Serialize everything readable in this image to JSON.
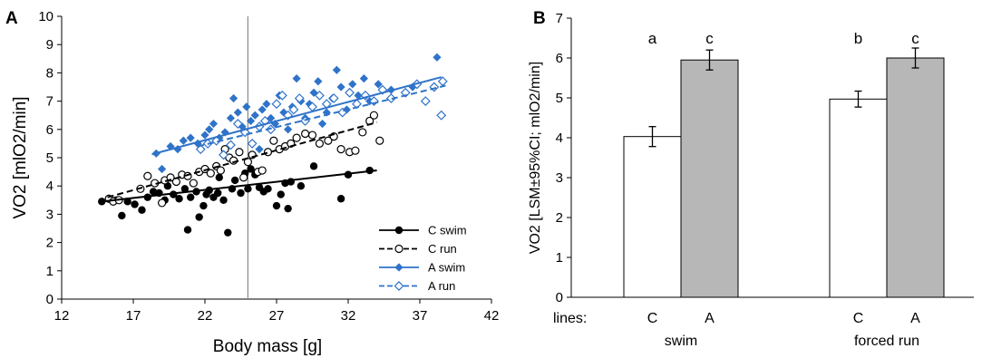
{
  "chart_data": [
    {
      "type": "scatter",
      "panel_label": "A",
      "xlabel": "Body mass [g]",
      "ylabel": "VO2 [mlO2/min]",
      "xlim": [
        12,
        42
      ],
      "ylim": [
        0,
        10
      ],
      "xticks": [
        "12",
        "17",
        "22",
        "27",
        "32",
        "37",
        "42"
      ],
      "yticks": [
        "0",
        "1",
        "2",
        "3",
        "4",
        "5",
        "6",
        "7",
        "8",
        "9",
        "10"
      ],
      "vline_x": 25,
      "legend_position": "bottom-right",
      "colors": {
        "black": "#000000",
        "blue": "#2f73c9"
      },
      "series": [
        {
          "name": "C swim",
          "marker": "filled-circle",
          "line": "solid",
          "color": "#000000",
          "trend": [
            [
              14.8,
              3.45
            ],
            [
              34.0,
              4.55
            ]
          ],
          "points": [
            [
              14.8,
              3.45
            ],
            [
              15.8,
              3.5
            ],
            [
              16.2,
              2.95
            ],
            [
              16.6,
              3.45
            ],
            [
              17.1,
              3.35
            ],
            [
              17.6,
              3.15
            ],
            [
              18.0,
              3.6
            ],
            [
              18.4,
              3.8
            ],
            [
              18.8,
              3.75
            ],
            [
              19.2,
              3.5
            ],
            [
              19.4,
              4.0
            ],
            [
              19.8,
              3.7
            ],
            [
              20.2,
              3.55
            ],
            [
              20.6,
              3.9
            ],
            [
              20.8,
              2.45
            ],
            [
              21.0,
              3.6
            ],
            [
              21.4,
              3.8
            ],
            [
              21.6,
              2.9
            ],
            [
              21.9,
              3.3
            ],
            [
              22.1,
              3.7
            ],
            [
              22.3,
              3.85
            ],
            [
              22.6,
              3.6
            ],
            [
              22.9,
              3.75
            ],
            [
              23.0,
              4.3
            ],
            [
              23.3,
              3.5
            ],
            [
              23.6,
              2.35
            ],
            [
              23.9,
              3.9
            ],
            [
              24.1,
              4.2
            ],
            [
              24.5,
              3.75
            ],
            [
              24.8,
              4.45
            ],
            [
              25.0,
              3.9
            ],
            [
              25.2,
              4.6
            ],
            [
              25.5,
              4.4
            ],
            [
              25.8,
              3.95
            ],
            [
              26.1,
              3.8
            ],
            [
              26.4,
              3.9
            ],
            [
              27.0,
              3.3
            ],
            [
              27.3,
              3.7
            ],
            [
              27.6,
              4.1
            ],
            [
              27.8,
              3.2
            ],
            [
              28.0,
              4.15
            ],
            [
              28.7,
              4.0
            ],
            [
              29.6,
              4.7
            ],
            [
              31.5,
              3.55
            ],
            [
              32.0,
              4.4
            ],
            [
              33.5,
              4.55
            ]
          ]
        },
        {
          "name": "C run",
          "marker": "open-circle",
          "line": "dashed",
          "color": "#000000",
          "trend": [
            [
              15.2,
              3.6
            ],
            [
              34.0,
              6.25
            ]
          ],
          "points": [
            [
              15.3,
              3.55
            ],
            [
              15.6,
              3.45
            ],
            [
              16.0,
              3.5
            ],
            [
              17.5,
              3.9
            ],
            [
              18.0,
              4.35
            ],
            [
              18.5,
              4.1
            ],
            [
              19.0,
              3.4
            ],
            [
              19.2,
              4.2
            ],
            [
              19.6,
              4.3
            ],
            [
              20.0,
              4.15
            ],
            [
              20.4,
              4.4
            ],
            [
              20.8,
              4.35
            ],
            [
              21.2,
              4.1
            ],
            [
              21.6,
              4.5
            ],
            [
              22.0,
              4.6
            ],
            [
              22.4,
              4.45
            ],
            [
              22.8,
              4.7
            ],
            [
              23.1,
              4.55
            ],
            [
              23.4,
              5.3
            ],
            [
              23.7,
              5.0
            ],
            [
              24.0,
              4.9
            ],
            [
              24.4,
              5.2
            ],
            [
              24.7,
              4.3
            ],
            [
              25.0,
              4.85
            ],
            [
              25.3,
              5.1
            ],
            [
              25.7,
              4.5
            ],
            [
              26.0,
              4.55
            ],
            [
              26.4,
              5.2
            ],
            [
              26.8,
              5.6
            ],
            [
              27.2,
              5.3
            ],
            [
              27.6,
              5.4
            ],
            [
              28.0,
              5.5
            ],
            [
              28.4,
              5.7
            ],
            [
              29.0,
              5.85
            ],
            [
              29.5,
              5.8
            ],
            [
              30.0,
              5.5
            ],
            [
              30.6,
              5.6
            ],
            [
              31.0,
              5.75
            ],
            [
              31.5,
              5.3
            ],
            [
              32.1,
              5.2
            ],
            [
              32.5,
              5.25
            ],
            [
              33.0,
              5.9
            ],
            [
              33.5,
              6.3
            ],
            [
              33.8,
              6.5
            ],
            [
              34.2,
              5.6
            ]
          ]
        },
        {
          "name": "A swim",
          "marker": "filled-diamond",
          "line": "solid",
          "color": "#2f73c9",
          "trend": [
            [
              18.3,
              5.12
            ],
            [
              38.5,
              7.85
            ]
          ],
          "points": [
            [
              18.6,
              5.15
            ],
            [
              19.0,
              4.6
            ],
            [
              19.6,
              5.4
            ],
            [
              20.1,
              5.3
            ],
            [
              20.5,
              5.6
            ],
            [
              21.0,
              5.7
            ],
            [
              21.5,
              5.5
            ],
            [
              22.0,
              5.8
            ],
            [
              22.3,
              6.0
            ],
            [
              22.6,
              6.2
            ],
            [
              23.0,
              5.7
            ],
            [
              23.4,
              5.9
            ],
            [
              23.8,
              6.4
            ],
            [
              24.0,
              7.1
            ],
            [
              24.3,
              6.6
            ],
            [
              24.6,
              6.1
            ],
            [
              24.9,
              6.8
            ],
            [
              25.2,
              6.3
            ],
            [
              25.5,
              6.5
            ],
            [
              25.8,
              5.3
            ],
            [
              26.0,
              6.7
            ],
            [
              26.3,
              6.9
            ],
            [
              26.6,
              6.4
            ],
            [
              26.9,
              6.2
            ],
            [
              27.2,
              7.2
            ],
            [
              27.5,
              6.6
            ],
            [
              27.8,
              6.0
            ],
            [
              28.1,
              6.8
            ],
            [
              28.4,
              7.8
            ],
            [
              28.7,
              7.0
            ],
            [
              29.0,
              6.4
            ],
            [
              29.3,
              6.9
            ],
            [
              29.6,
              7.3
            ],
            [
              29.9,
              7.7
            ],
            [
              30.2,
              6.2
            ],
            [
              30.5,
              6.6
            ],
            [
              30.9,
              7.1
            ],
            [
              31.2,
              8.1
            ],
            [
              31.5,
              7.5
            ],
            [
              31.9,
              6.7
            ],
            [
              32.3,
              7.6
            ],
            [
              32.7,
              7.2
            ],
            [
              33.1,
              7.8
            ],
            [
              33.5,
              7.0
            ],
            [
              34.1,
              7.6
            ],
            [
              35.0,
              7.4
            ],
            [
              36.5,
              7.5
            ],
            [
              38.2,
              8.55
            ]
          ]
        },
        {
          "name": "A run",
          "marker": "open-diamond",
          "line": "dashed",
          "color": "#2f73c9",
          "trend": [
            [
              21.5,
              5.4
            ],
            [
              38.8,
              7.55
            ]
          ],
          "points": [
            [
              21.7,
              5.3
            ],
            [
              22.2,
              5.5
            ],
            [
              22.8,
              5.6
            ],
            [
              23.3,
              5.1
            ],
            [
              23.8,
              5.45
            ],
            [
              24.3,
              6.2
            ],
            [
              24.8,
              5.9
            ],
            [
              25.3,
              5.5
            ],
            [
              25.8,
              6.1
            ],
            [
              26.2,
              6.3
            ],
            [
              26.6,
              6.0
            ],
            [
              27.0,
              6.9
            ],
            [
              27.4,
              7.2
            ],
            [
              27.8,
              6.5
            ],
            [
              28.2,
              6.7
            ],
            [
              28.6,
              7.1
            ],
            [
              29.0,
              6.3
            ],
            [
              29.5,
              6.8
            ],
            [
              30.0,
              7.2
            ],
            [
              30.5,
              6.9
            ],
            [
              31.0,
              7.1
            ],
            [
              31.6,
              6.6
            ],
            [
              32.1,
              7.3
            ],
            [
              32.6,
              6.9
            ],
            [
              33.2,
              7.2
            ],
            [
              33.8,
              7.0
            ],
            [
              34.4,
              7.4
            ],
            [
              35.0,
              7.1
            ],
            [
              36.0,
              7.3
            ],
            [
              36.8,
              7.6
            ],
            [
              37.4,
              7.0
            ],
            [
              38.0,
              7.5
            ],
            [
              38.6,
              7.7
            ],
            [
              38.5,
              6.5
            ]
          ]
        }
      ]
    },
    {
      "type": "bar",
      "panel_label": "B",
      "ylabel": "VO2 [LSM±95%CI; mlO2/min]",
      "ylim": [
        0,
        7
      ],
      "yticks": [
        "0",
        "1",
        "2",
        "3",
        "4",
        "5",
        "6",
        "7"
      ],
      "lines_label": "lines:",
      "groups": [
        {
          "name": "swim",
          "bars": [
            {
              "line": "C",
              "value": 4.03,
              "err": 0.25,
              "letter": "a",
              "fill": "#ffffff"
            },
            {
              "line": "A",
              "value": 5.95,
              "err": 0.25,
              "letter": "c",
              "fill": "#b7b7b7"
            }
          ]
        },
        {
          "name": "forced run",
          "bars": [
            {
              "line": "C",
              "value": 4.97,
              "err": 0.2,
              "letter": "b",
              "fill": "#ffffff"
            },
            {
              "line": "A",
              "value": 6.0,
              "err": 0.25,
              "letter": "c",
              "fill": "#b7b7b7"
            }
          ]
        }
      ]
    }
  ]
}
